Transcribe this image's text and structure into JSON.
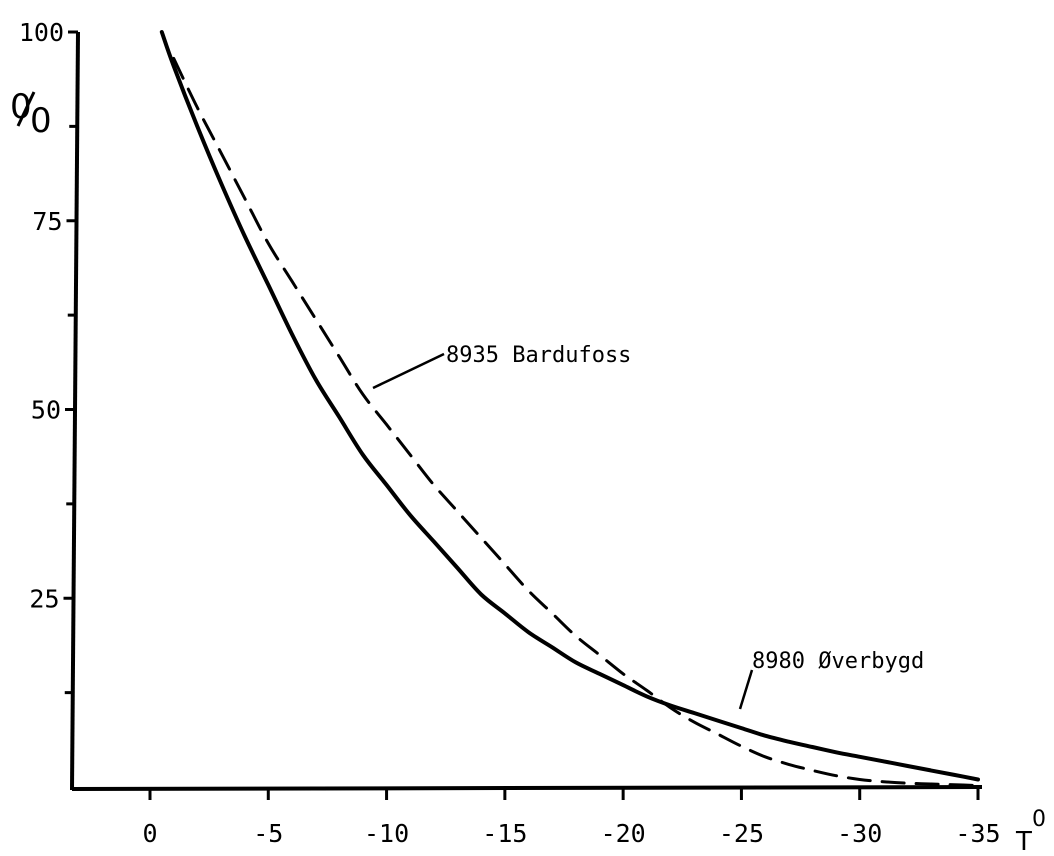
{
  "chart_data": {
    "type": "line",
    "title": "",
    "ylabel": "%",
    "xlabel": "T°",
    "xlim": [
      0,
      -35
    ],
    "ylim": [
      0,
      100
    ],
    "x_ticks": [
      "0",
      "-5",
      "-10",
      "-15",
      "-20",
      "-25",
      "-30",
      "-35"
    ],
    "y_ticks": [
      "25",
      "50",
      "75",
      "100"
    ],
    "grid": false,
    "legend": "none",
    "series": [
      {
        "name": "8980 Øverbygd",
        "style": "solid",
        "color": "#000000",
        "x": [
          -0.5,
          -1,
          -2,
          -3,
          -4,
          -5,
          -6,
          -7,
          -8,
          -9,
          -10,
          -11,
          -12,
          -13,
          -14,
          -15,
          -16,
          -17,
          -18,
          -19,
          -20,
          -21,
          -22,
          -23,
          -24,
          -25,
          -26,
          -27,
          -28,
          -29,
          -30,
          -31,
          -32,
          -33,
          -34,
          -35
        ],
        "y": [
          100,
          95.5,
          87.5,
          80,
          73,
          66.5,
          60,
          54,
          49,
          44,
          40,
          36,
          32.5,
          29,
          25.5,
          23,
          20.5,
          18.5,
          16.5,
          15,
          13.5,
          12,
          10.8,
          9.8,
          8.8,
          7.8,
          6.8,
          6,
          5.3,
          4.6,
          4,
          3.4,
          2.8,
          2.2,
          1.6,
          1
        ]
      },
      {
        "name": "8935 Bardufoss",
        "style": "dashed",
        "color": "#000000",
        "x": [
          -1,
          -2,
          -3,
          -4,
          -5,
          -6,
          -7,
          -8,
          -9,
          -10,
          -11,
          -12,
          -13,
          -14,
          -15,
          -16,
          -17,
          -18,
          -19,
          -20,
          -21,
          -22,
          -23,
          -24,
          -25,
          -26,
          -27,
          -28,
          -29,
          -30,
          -31,
          -32,
          -33,
          -34,
          -35
        ],
        "y": [
          96.5,
          90,
          84,
          78,
          72,
          67,
          62,
          57,
          52,
          48,
          44,
          40,
          36.5,
          33,
          29.5,
          26,
          23,
          20,
          17.5,
          15,
          12.8,
          10.5,
          8.6,
          7,
          5.4,
          4,
          3,
          2.2,
          1.5,
          1,
          0.7,
          0.5,
          0.4,
          0.3,
          0.2
        ]
      }
    ],
    "annotations": [
      {
        "text": "8935 Bardufoss",
        "series": 1
      },
      {
        "text": "8980 Øverbygd",
        "series": 0
      }
    ]
  },
  "axis": {
    "y_unit_top": "0",
    "y_unit_bottom": "0",
    "x_unit": "T",
    "x_unit_sup": "0"
  }
}
